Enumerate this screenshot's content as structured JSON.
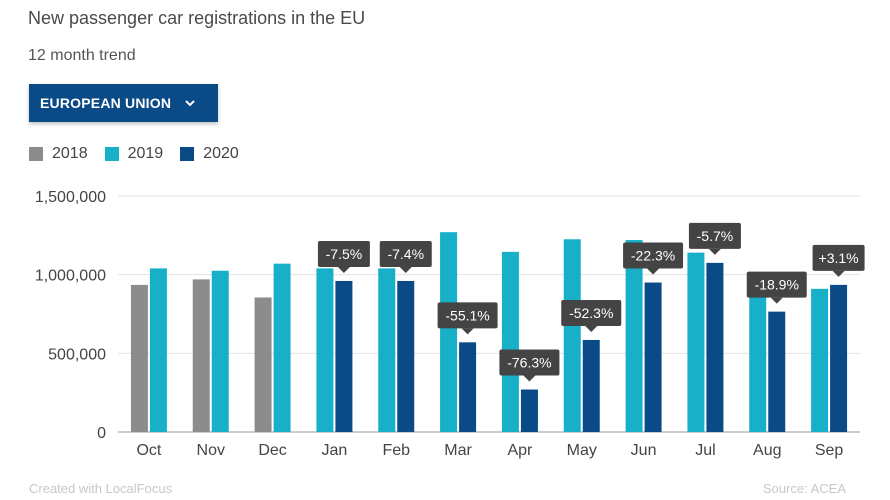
{
  "header": {
    "title": "New passenger car registrations in the EU",
    "subtitle": "12 month trend"
  },
  "dropdown": {
    "label": "EUROPEAN UNION",
    "icon": "chevron-down-icon"
  },
  "colors": {
    "2018": "#8c8c8c",
    "2019": "#17b0c8",
    "2020": "#0a4a86",
    "callout": "#444444"
  },
  "footer": {
    "credit": "Created with LocalFocus",
    "source": "Source: ACEA"
  },
  "chart_data": {
    "type": "bar",
    "categories": [
      "Oct",
      "Nov",
      "Dec",
      "Jan",
      "Feb",
      "Mar",
      "Apr",
      "May",
      "Jun",
      "Jul",
      "Aug",
      "Sep"
    ],
    "series": [
      {
        "name": "2018",
        "values": [
          935000,
          970000,
          855000,
          null,
          null,
          null,
          null,
          null,
          null,
          null,
          null,
          null
        ]
      },
      {
        "name": "2019",
        "values": [
          1040000,
          1025000,
          1070000,
          1040000,
          1040000,
          1270000,
          1145000,
          1225000,
          1220000,
          1140000,
          945000,
          910000
        ]
      },
      {
        "name": "2020",
        "values": [
          null,
          null,
          null,
          960000,
          960000,
          570000,
          270000,
          585000,
          950000,
          1075000,
          765000,
          935000
        ]
      }
    ],
    "annotations": [
      null,
      null,
      null,
      "-7.5%",
      "-7.4%",
      "-55.1%",
      "-76.3%",
      "-52.3%",
      "-22.3%",
      "-5.7%",
      "-18.9%",
      "+3.1%"
    ],
    "ylim": [
      0,
      1500000
    ],
    "yticks": [
      0,
      500000,
      1000000,
      1500000
    ],
    "ytick_labels": [
      "0",
      "500,000",
      "1,000,000",
      "1,500,000"
    ],
    "grid": true,
    "legend": "top-left",
    "xlabel": "",
    "ylabel": ""
  }
}
